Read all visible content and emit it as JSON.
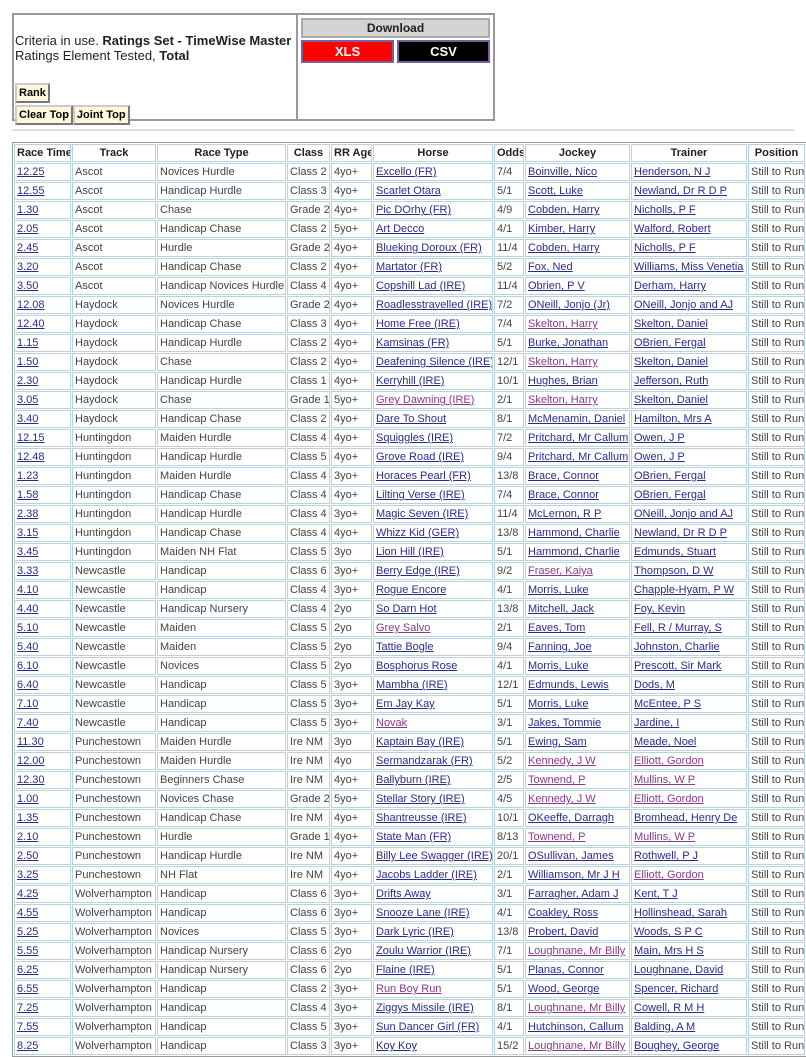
{
  "criteria": {
    "prefix": "Criteria in use. ",
    "set": "Ratings Set - TimeWise Master",
    "element_prefix": "Ratings Element Tested, ",
    "element": "Total"
  },
  "buttons": {
    "rank": "Rank",
    "clear_top": "Clear Top",
    "joint_top": "Joint Top"
  },
  "download": {
    "title": "Download",
    "xls": "XLS",
    "csv": "CSV",
    "xls_color": "#ff0000",
    "csv_color": "#000000"
  },
  "colors": {
    "link": "#2b2b8f",
    "visited_link": "#8b3a8b"
  },
  "table": {
    "headers": [
      "Race Time",
      "Track",
      "Race Type",
      "Class",
      "RR Age",
      "Horse",
      "Odds",
      "Jockey",
      "Trainer",
      "Position"
    ],
    "visited_note_columns": "v lists column indexes shown in visited-link colour",
    "rows": [
      {
        "c": [
          "12.25",
          "Ascot",
          "Novices Hurdle",
          "Class 2",
          "4yo+",
          "Excello (FR)",
          "7/4",
          "Boinville, Nico",
          "Henderson, N J",
          "Still to Run"
        ]
      },
      {
        "c": [
          "12.55",
          "Ascot",
          "Handicap Hurdle",
          "Class 3",
          "4yo+",
          "Scarlet Otara",
          "5/1",
          "Scott, Luke",
          "Newland, Dr R D P",
          "Still to Run"
        ]
      },
      {
        "c": [
          "1.30",
          "Ascot",
          "Chase",
          "Grade 2",
          "4yo+",
          "Pic DOrhy (FR)",
          "4/9",
          "Cobden, Harry",
          "Nicholls, P F",
          "Still to Run"
        ]
      },
      {
        "c": [
          "2.05",
          "Ascot",
          "Handicap Chase",
          "Class 2",
          "5yo+",
          "Art Decco",
          "4/1",
          "Kimber, Harry",
          "Walford, Robert",
          "Still to Run"
        ]
      },
      {
        "c": [
          "2.45",
          "Ascot",
          "Hurdle",
          "Grade 2",
          "4yo+",
          "Blueking Doroux (FR)",
          "11/4",
          "Cobden, Harry",
          "Nicholls, P F",
          "Still to Run"
        ]
      },
      {
        "c": [
          "3.20",
          "Ascot",
          "Handicap Chase",
          "Class 2",
          "4yo+",
          "Martator (FR)",
          "5/2",
          "Fox, Ned",
          "Williams, Miss Venetia",
          "Still to Run"
        ]
      },
      {
        "c": [
          "3.50",
          "Ascot",
          "Handicap Novices Hurdle",
          "Class 4",
          "4yo+",
          "Copshill Lad (IRE)",
          "11/4",
          "Obrien, P V",
          "Derham, Harry",
          "Still to Run"
        ]
      },
      {
        "c": [
          "12.08",
          "Haydock",
          "Novices Hurdle",
          "Grade 2",
          "4yo+",
          "Roadlesstravelled (IRE)",
          "7/2",
          "ONeill, Jonjo (Jr)",
          "ONeill, Jonjo and AJ",
          "Still to Run"
        ]
      },
      {
        "c": [
          "12.40",
          "Haydock",
          "Handicap Chase",
          "Class 3",
          "4yo+",
          "Home Free (IRE)",
          "7/4",
          "Skelton, Harry",
          "Skelton, Daniel",
          "Still to Run"
        ],
        "v": [
          7
        ]
      },
      {
        "c": [
          "1.15",
          "Haydock",
          "Handicap Hurdle",
          "Class 2",
          "4yo+",
          "Kamsinas (FR)",
          "5/1",
          "Burke, Jonathan",
          "OBrien, Fergal",
          "Still to Run"
        ]
      },
      {
        "c": [
          "1.50",
          "Haydock",
          "Chase",
          "Class 2",
          "4yo+",
          "Deafening Silence (IRE)",
          "12/1",
          "Skelton, Harry",
          "Skelton, Daniel",
          "Still to Run"
        ],
        "v": [
          7
        ]
      },
      {
        "c": [
          "2.30",
          "Haydock",
          "Handicap Hurdle",
          "Class 1",
          "4yo+",
          "Kerryhill (IRE)",
          "10/1",
          "Hughes, Brian",
          "Jefferson, Ruth",
          "Still to Run"
        ]
      },
      {
        "c": [
          "3.05",
          "Haydock",
          "Chase",
          "Grade 1",
          "5yo+",
          "Grey Dawning (IRE)",
          "2/1",
          "Skelton, Harry",
          "Skelton, Daniel",
          "Still to Run"
        ],
        "v": [
          5,
          7
        ]
      },
      {
        "c": [
          "3.40",
          "Haydock",
          "Handicap Chase",
          "Class 2",
          "4yo+",
          "Dare To Shout",
          "8/1",
          "McMenamin, Daniel",
          "Hamilton, Mrs A",
          "Still to Run"
        ]
      },
      {
        "c": [
          "12.15",
          "Huntingdon",
          "Maiden Hurdle",
          "Class 4",
          "4yo+",
          "Squiggles (IRE)",
          "7/2",
          "Pritchard, Mr Callum",
          "Owen, J P",
          "Still to Run"
        ]
      },
      {
        "c": [
          "12.48",
          "Huntingdon",
          "Handicap Hurdle",
          "Class 5",
          "4yo+",
          "Grove Road (IRE)",
          "9/4",
          "Pritchard, Mr Callum",
          "Owen, J P",
          "Still to Run"
        ]
      },
      {
        "c": [
          "1.23",
          "Huntingdon",
          "Maiden Hurdle",
          "Class 4",
          "3yo+",
          "Horaces Pearl (FR)",
          "13/8",
          "Brace, Connor",
          "OBrien, Fergal",
          "Still to Run"
        ]
      },
      {
        "c": [
          "1.58",
          "Huntingdon",
          "Handicap Chase",
          "Class 4",
          "4yo+",
          "Lilting Verse (IRE)",
          "7/4",
          "Brace, Connor",
          "OBrien, Fergal",
          "Still to Run"
        ]
      },
      {
        "c": [
          "2.38",
          "Huntingdon",
          "Handicap Hurdle",
          "Class 4",
          "3yo+",
          "Magic Seven (IRE)",
          "11/4",
          "McLernon, R P",
          "ONeill, Jonjo and AJ",
          "Still to Run"
        ]
      },
      {
        "c": [
          "3.15",
          "Huntingdon",
          "Handicap Chase",
          "Class 4",
          "4yo+",
          "Whizz Kid (GER)",
          "13/8",
          "Hammond, Charlie",
          "Newland, Dr R D P",
          "Still to Run"
        ]
      },
      {
        "c": [
          "3.45",
          "Huntingdon",
          "Maiden NH Flat",
          "Class 5",
          "3yo",
          "Lion Hill (IRE)",
          "5/1",
          "Hammond, Charlie",
          "Edmunds, Stuart",
          "Still to Run"
        ]
      },
      {
        "c": [
          "3.33",
          "Newcastle",
          "Handicap",
          "Class 6",
          "3yo+",
          "Berry Edge (IRE)",
          "9/2",
          "Fraser, Kaiya",
          "Thompson, D W",
          "Still to Run"
        ],
        "v": [
          7
        ]
      },
      {
        "c": [
          "4.10",
          "Newcastle",
          "Handicap",
          "Class 4",
          "3yo+",
          "Rogue Encore",
          "4/1",
          "Morris, Luke",
          "Chapple-Hyam, P W",
          "Still to Run"
        ]
      },
      {
        "c": [
          "4.40",
          "Newcastle",
          "Handicap Nursery",
          "Class 4",
          "2yo",
          "So Darn Hot",
          "13/8",
          "Mitchell, Jack",
          "Foy, Kevin",
          "Still to Run"
        ]
      },
      {
        "c": [
          "5.10",
          "Newcastle",
          "Maiden",
          "Class 5",
          "2yo",
          "Grey Salvo",
          "2/1",
          "Eaves, Tom",
          "Fell, R / Murray, S",
          "Still to Run"
        ],
        "v": [
          5
        ]
      },
      {
        "c": [
          "5.40",
          "Newcastle",
          "Maiden",
          "Class 5",
          "2yo",
          "Tattie Bogle",
          "9/4",
          "Fanning, Joe",
          "Johnston, Charlie",
          "Still to Run"
        ]
      },
      {
        "c": [
          "6.10",
          "Newcastle",
          "Novices",
          "Class 5",
          "2yo",
          "Bosphorus Rose",
          "4/1",
          "Morris, Luke",
          "Prescott, Sir Mark",
          "Still to Run"
        ]
      },
      {
        "c": [
          "6.40",
          "Newcastle",
          "Handicap",
          "Class 5",
          "3yo+",
          "Mambha (IRE)",
          "12/1",
          "Edmunds, Lewis",
          "Dods, M",
          "Still to Run"
        ]
      },
      {
        "c": [
          "7.10",
          "Newcastle",
          "Handicap",
          "Class 5",
          "3yo+",
          "Em Jay Kay",
          "5/1",
          "Morris, Luke",
          "McEntee, P S",
          "Still to Run"
        ]
      },
      {
        "c": [
          "7.40",
          "Newcastle",
          "Handicap",
          "Class 5",
          "3yo+",
          "Novak",
          "3/1",
          "Jakes, Tommie",
          "Jardine, I",
          "Still to Run"
        ],
        "v": [
          5
        ]
      },
      {
        "c": [
          "11.30",
          "Punchestown",
          "Maiden Hurdle",
          "Ire NM",
          "3yo",
          "Kaptain Bay (IRE)",
          "5/1",
          "Ewing, Sam",
          "Meade, Noel",
          "Still to Run"
        ]
      },
      {
        "c": [
          "12.00",
          "Punchestown",
          "Maiden Hurdle",
          "Ire NM",
          "4yo",
          "Sermandzarak (FR)",
          "5/2",
          "Kennedy, J W",
          "Elliott, Gordon",
          "Still to Run"
        ],
        "v": [
          7,
          8
        ]
      },
      {
        "c": [
          "12.30",
          "Punchestown",
          "Beginners Chase",
          "Ire NM",
          "4yo+",
          "Ballyburn (IRE)",
          "2/5",
          "Townend, P",
          "Mullins, W P",
          "Still to Run"
        ],
        "v": [
          7,
          8
        ]
      },
      {
        "c": [
          "1.00",
          "Punchestown",
          "Novices Chase",
          "Grade 2",
          "5yo+",
          "Stellar Story (IRE)",
          "4/5",
          "Kennedy, J W",
          "Elliott, Gordon",
          "Still to Run"
        ],
        "v": [
          7,
          8
        ]
      },
      {
        "c": [
          "1.35",
          "Punchestown",
          "Handicap Chase",
          "Ire NM",
          "4yo+",
          "Shantreusse (IRE)",
          "10/1",
          "OKeeffe, Darragh",
          "Bromhead, Henry De",
          "Still to Run"
        ]
      },
      {
        "c": [
          "2.10",
          "Punchestown",
          "Hurdle",
          "Grade 1",
          "4yo+",
          "State Man (FR)",
          "8/13",
          "Townend, P",
          "Mullins, W P",
          "Still to Run"
        ],
        "v": [
          7,
          8
        ]
      },
      {
        "c": [
          "2.50",
          "Punchestown",
          "Handicap Hurdle",
          "Ire NM",
          "4yo+",
          "Billy Lee Swagger (IRE)",
          "20/1",
          "OSullivan, James",
          "Rothwell, P J",
          "Still to Run"
        ]
      },
      {
        "c": [
          "3.25",
          "Punchestown",
          "NH Flat",
          "Ire NM",
          "4yo+",
          "Jacobs Ladder (IRE)",
          "2/1",
          "Williamson, Mr J H",
          "Elliott, Gordon",
          "Still to Run"
        ],
        "v": [
          8
        ]
      },
      {
        "c": [
          "4.25",
          "Wolverhampton",
          "Handicap",
          "Class 6",
          "3yo+",
          "Drifts Away",
          "3/1",
          "Farragher, Adam J",
          "Kent, T J",
          "Still to Run"
        ]
      },
      {
        "c": [
          "4.55",
          "Wolverhampton",
          "Handicap",
          "Class 6",
          "3yo+",
          "Snooze Lane (IRE)",
          "4/1",
          "Coakley, Ross",
          "Hollinshead, Sarah",
          "Still to Run"
        ]
      },
      {
        "c": [
          "5.25",
          "Wolverhampton",
          "Novices",
          "Class 5",
          "3yo+",
          "Dark Lyric (IRE)",
          "13/8",
          "Probert, David",
          "Woods, S P C",
          "Still to Run"
        ]
      },
      {
        "c": [
          "5.55",
          "Wolverhampton",
          "Handicap Nursery",
          "Class 6",
          "2yo",
          "Zoulu Warrior (IRE)",
          "7/1",
          "Loughnane, Mr Billy",
          "Main, Mrs H S",
          "Still to Run"
        ],
        "v": [
          7
        ]
      },
      {
        "c": [
          "6.25",
          "Wolverhampton",
          "Handicap Nursery",
          "Class 6",
          "2yo",
          "Flaine (IRE)",
          "5/1",
          "Planas, Connor",
          "Loughnane, David",
          "Still to Run"
        ]
      },
      {
        "c": [
          "6.55",
          "Wolverhampton",
          "Handicap",
          "Class 2",
          "3yo+",
          "Run Boy Run",
          "5/1",
          "Wood, George",
          "Spencer, Richard",
          "Still to Run"
        ],
        "v": [
          5
        ]
      },
      {
        "c": [
          "7.25",
          "Wolverhampton",
          "Handicap",
          "Class 4",
          "3yo+",
          "Ziggys Missile (IRE)",
          "8/1",
          "Loughnane, Mr Billy",
          "Cowell, R M H",
          "Still to Run"
        ],
        "v": [
          7
        ]
      },
      {
        "c": [
          "7.55",
          "Wolverhampton",
          "Handicap",
          "Class 5",
          "3yo+",
          "Sun Dancer Girl (FR)",
          "4/1",
          "Hutchinson, Callum",
          "Balding, A M",
          "Still to Run"
        ]
      },
      {
        "c": [
          "8.25",
          "Wolverhampton",
          "Handicap",
          "Class 3",
          "3yo+",
          "Koy Koy",
          "15/2",
          "Loughnane, Mr Billy",
          "Boughey, George",
          "Still to Run"
        ],
        "v": [
          7
        ]
      }
    ]
  }
}
